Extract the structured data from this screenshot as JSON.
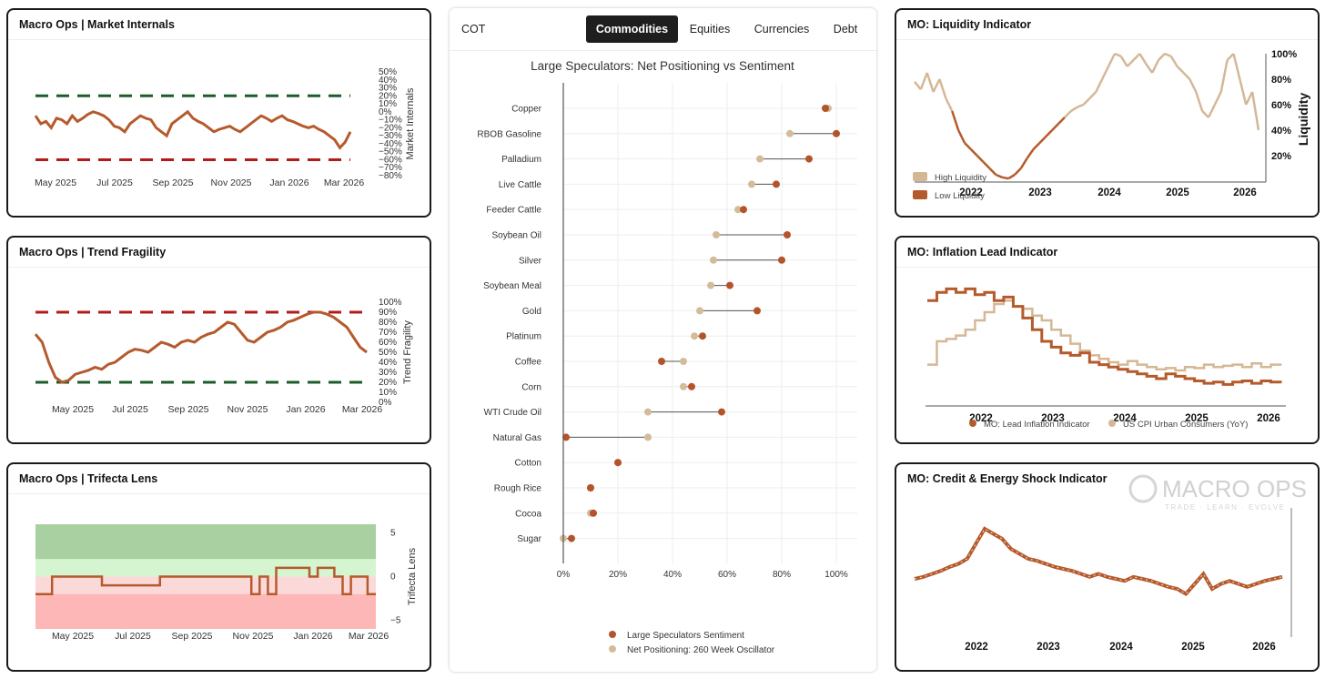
{
  "panels": {
    "market_internals": {
      "title": "Macro Ops | Market Internals",
      "chart_data": {
        "type": "line",
        "x_tick_labels": [
          "May 2025",
          "Jul 2025",
          "Sep 2025",
          "Nov 2025",
          "Jan 2026",
          "Mar 2026"
        ],
        "ylabel": "Market Internals",
        "y_ticks": [
          50,
          40,
          30,
          20,
          10,
          0,
          -10,
          -20,
          -30,
          -40,
          -50,
          -60,
          -70,
          -80
        ],
        "y_tick_labels": [
          "50%",
          "40%",
          "30%",
          "20%",
          "10%",
          "0%",
          "−10%",
          "−20%",
          "−30%",
          "−40%",
          "−50%",
          "−60%",
          "−70%",
          "−80%"
        ],
        "ylim": [
          -80,
          50
        ],
        "threshold_high": 20,
        "threshold_low": -60,
        "series": [
          {
            "values": [
              -5,
              -15,
              -12,
              -20,
              -8,
              -10,
              -15,
              -5,
              -12,
              -8,
              -3,
              0,
              -2,
              -5,
              -10,
              -18,
              -20,
              -25,
              -15,
              -10,
              -5,
              -8,
              -10,
              -20,
              -25,
              -30,
              -15,
              -10,
              -5,
              0,
              -8,
              -12,
              -15,
              -20,
              -25,
              -22,
              -20,
              -18,
              -22,
              -25,
              -20,
              -15,
              -10,
              -5,
              -8,
              -12,
              -8,
              -5,
              -10,
              -12,
              -15,
              -18,
              -20,
              -18,
              -22,
              -25,
              -30,
              -35,
              -45,
              -38,
              -25
            ]
          }
        ],
        "colors": {
          "line": "#b55a2c",
          "high": "#1d5c2a",
          "low": "#b31b1b"
        }
      }
    },
    "trend_fragility": {
      "title": "Macro Ops | Trend Fragility",
      "chart_data": {
        "type": "line",
        "x_tick_labels": [
          "May 2025",
          "Jul 2025",
          "Sep 2025",
          "Nov 2025",
          "Jan 2026",
          "Mar 2026"
        ],
        "ylabel": "Trend Fragility",
        "y_ticks": [
          100,
          90,
          80,
          70,
          60,
          50,
          40,
          30,
          20,
          10,
          0
        ],
        "y_tick_labels": [
          "100%",
          "90%",
          "80%",
          "70%",
          "60%",
          "50%",
          "40%",
          "30%",
          "20%",
          "10%",
          "0%"
        ],
        "ylim": [
          0,
          100
        ],
        "threshold_high": 90,
        "threshold_low": 20,
        "series": [
          {
            "values": [
              68,
              60,
              40,
              25,
              20,
              22,
              28,
              30,
              32,
              35,
              33,
              38,
              40,
              45,
              50,
              53,
              52,
              50,
              55,
              60,
              58,
              55,
              60,
              62,
              60,
              65,
              68,
              70,
              75,
              80,
              78,
              70,
              62,
              60,
              65,
              70,
              72,
              75,
              80,
              82,
              85,
              88,
              90,
              90,
              88,
              85,
              80,
              75,
              65,
              55,
              50
            ]
          }
        ],
        "colors": {
          "line": "#b55a2c",
          "high": "#b31b1b",
          "low": "#1d5c2a"
        }
      }
    },
    "trifecta_lens": {
      "title": "Macro Ops | Trifecta Lens",
      "chart_data": {
        "type": "line",
        "x_tick_labels": [
          "May 2025",
          "Jul 2025",
          "Sep 2025",
          "Nov 2025",
          "Jan 2026",
          "Mar 2026"
        ],
        "ylabel": "Trifecta Lens",
        "y_ticks": [
          5,
          0,
          -5
        ],
        "y_tick_labels": [
          "5",
          "0",
          "−5"
        ],
        "ylim": [
          -6,
          6
        ],
        "bands": [
          {
            "from": 2,
            "to": 6,
            "color": "#a9d0a1"
          },
          {
            "from": 0,
            "to": 2,
            "color": "#d5f5d0"
          },
          {
            "from": -2,
            "to": 0,
            "color": "#fcd9d9"
          },
          {
            "from": -6,
            "to": -2,
            "color": "#fdb7b7"
          }
        ],
        "series": [
          {
            "values": [
              -2,
              -2,
              0,
              0,
              0,
              0,
              0,
              0,
              -1,
              -1,
              -1,
              -1,
              -1,
              -1,
              -1,
              0,
              0,
              0,
              0,
              0,
              0,
              0,
              0,
              0,
              0,
              0,
              -2,
              0,
              -2,
              1,
              1,
              1,
              1,
              0,
              1,
              1,
              0,
              -2,
              0,
              0,
              -2,
              -2
            ]
          }
        ],
        "colors": {
          "line": "#b55a2c"
        }
      }
    },
    "liquidity": {
      "title": "MO: Liquidity Indicator",
      "chart_data": {
        "type": "line",
        "x_tick_labels": [
          "2022",
          "2023",
          "2024",
          "2025",
          "2026"
        ],
        "ylabel": "Liquidity",
        "y_ticks": [
          100,
          80,
          60,
          40,
          20
        ],
        "y_tick_labels": [
          "100%",
          "80%",
          "60%",
          "40%",
          "20%"
        ],
        "ylim": [
          0,
          100
        ],
        "legend": [
          "High Liquidity",
          "Low Liquidity"
        ],
        "series": [
          {
            "values": [
              78,
              72,
              85,
              70,
              80,
              65,
              55,
              40,
              30,
              25,
              20,
              15,
              10,
              5,
              3,
              2,
              5,
              10,
              18,
              25,
              30,
              35,
              40,
              45,
              50,
              55,
              58,
              60,
              65,
              70,
              80,
              90,
              100,
              98,
              90,
              95,
              100,
              92,
              85,
              95,
              100,
              98,
              90,
              85,
              80,
              70,
              55,
              50,
              60,
              70,
              95,
              100,
              80,
              60,
              70,
              40
            ]
          }
        ],
        "colors": {
          "high": "#d4b896",
          "low": "#b55a2c"
        },
        "threshold": 50
      }
    },
    "inflation_lead": {
      "title": "MO: Inflation Lead Indicator",
      "chart_data": {
        "type": "line",
        "x_tick_labels": [
          "2022",
          "2023",
          "2024",
          "2025",
          "2026"
        ],
        "legend": [
          "MO: Lead Inflation Indicator",
          "US CPI Urban Consumers (YoY)"
        ],
        "series": [
          {
            "name": "MO: Lead Inflation Indicator",
            "values": [
              85,
              92,
              95,
              92,
              95,
              90,
              92,
              85,
              88,
              80,
              70,
              60,
              50,
              45,
              40,
              38,
              40,
              32,
              30,
              28,
              26,
              24,
              22,
              20,
              18,
              22,
              20,
              18,
              16,
              14,
              15,
              13,
              15,
              16,
              14,
              16,
              15,
              14
            ]
          },
          {
            "name": "US CPI Urban Consumers (YoY)",
            "values": [
              30,
              50,
              52,
              55,
              60,
              68,
              75,
              82,
              85,
              80,
              78,
              72,
              68,
              60,
              55,
              48,
              42,
              38,
              35,
              32,
              30,
              33,
              30,
              28,
              26,
              27,
              25,
              28,
              27,
              30,
              28,
              29,
              30,
              28,
              31,
              28,
              30,
              29
            ]
          }
        ],
        "colors": {
          "lead": "#b55a2c",
          "cpi": "#d4b896"
        }
      }
    },
    "credit_energy": {
      "title": "MO: Credit & Energy Shock Indicator",
      "watermark": {
        "brand": "MACRO OPS",
        "tagline": "TRADE · LEARN · EVOLVE"
      },
      "chart_data": {
        "type": "line",
        "x_tick_labels": [
          "2022",
          "2023",
          "2024",
          "2025",
          "2026"
        ],
        "series": [
          {
            "values": [
              40,
              42,
              45,
              48,
              52,
              55,
              60,
              75,
              90,
              85,
              80,
              70,
              65,
              60,
              58,
              55,
              52,
              50,
              48,
              45,
              42,
              45,
              42,
              40,
              38,
              42,
              40,
              38,
              35,
              32,
              30,
              25,
              35,
              45,
              30,
              35,
              38,
              35,
              32,
              35,
              38,
              40,
              42
            ]
          }
        ],
        "colors": {
          "line": "#b55a2c"
        }
      }
    }
  },
  "cot": {
    "label": "COT",
    "tabs": [
      {
        "label": "Commodities",
        "active": true
      },
      {
        "label": "Equities",
        "active": false
      },
      {
        "label": "Currencies",
        "active": false
      },
      {
        "label": "Debt",
        "active": false
      }
    ],
    "chart_data": {
      "type": "dumbbell",
      "title": "Large Speculators: Net Positioning vs Sentiment",
      "categories": [
        "Copper",
        "RBOB Gasoline",
        "Palladium",
        "Live Cattle",
        "Feeder Cattle",
        "Soybean Oil",
        "Silver",
        "Soybean Meal",
        "Gold",
        "Platinum",
        "Coffee",
        "Corn",
        "WTI Crude Oil",
        "Natural Gas",
        "Cotton",
        "Rough Rice",
        "Cocoa",
        "Sugar"
      ],
      "series": [
        {
          "name": "Large Speculators Sentiment",
          "values": [
            96,
            100,
            90,
            78,
            66,
            82,
            80,
            61,
            71,
            51,
            36,
            47,
            58,
            1,
            20,
            10,
            11,
            3
          ]
        },
        {
          "name": "Net Positioning: 260 Week Oscillator",
          "values": [
            97,
            83,
            72,
            69,
            64,
            56,
            55,
            54,
            50,
            48,
            44,
            44,
            31,
            31,
            20,
            10,
            10,
            0
          ]
        }
      ],
      "x_ticks": [
        0,
        20,
        40,
        60,
        80,
        100
      ],
      "x_tick_labels": [
        "0%",
        "20%",
        "40%",
        "60%",
        "80%",
        "100%"
      ],
      "xlim": [
        0,
        100
      ],
      "colors": {
        "sentiment": "#b5532b",
        "positioning": "#d4bc9a"
      },
      "legend_position": "bottom"
    }
  }
}
